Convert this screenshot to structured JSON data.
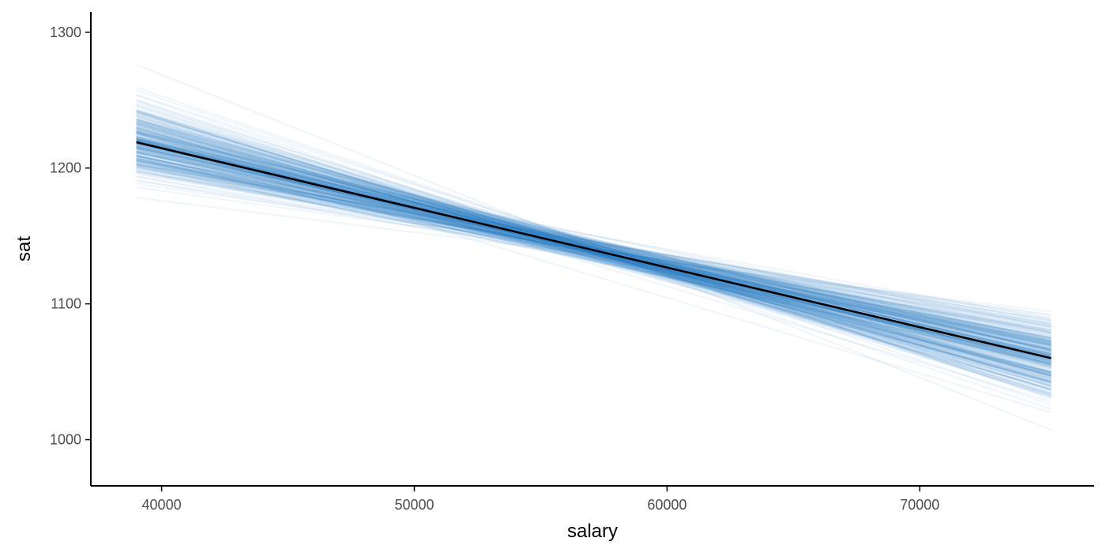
{
  "chart_data": {
    "type": "line",
    "title": "",
    "xlabel": "salary",
    "ylabel": "sat",
    "xlim": [
      37200,
      76900
    ],
    "ylim": [
      966,
      1315
    ],
    "x_ticks": [
      40000,
      50000,
      60000,
      70000
    ],
    "y_ticks": [
      1000,
      1100,
      1200,
      1300
    ],
    "x_tick_labels": [
      "40000",
      "50000",
      "60000",
      "70000"
    ],
    "y_tick_labels": [
      "1000",
      "1100",
      "1200",
      "1300"
    ],
    "grid": false,
    "legend": "none",
    "x_range_data": [
      39000,
      75200
    ],
    "series": [
      {
        "type": "fitted-line",
        "x": [
          39000,
          75200
        ],
        "y": [
          1219,
          1060
        ]
      }
    ],
    "uncertainty_draws": {
      "count": 300,
      "color": "#2f7fc1",
      "opacity": 0.07,
      "slope_per_10000": {
        "mean": -44,
        "sd": 7.5
      },
      "center_salary": 57100,
      "center_sat": 1139.5,
      "center_sd": 4.5
    },
    "colors": {
      "fitted_line": "#000000",
      "draws": "#2f7fc1",
      "axis": "#000000",
      "tick_text": "#4d4d4d"
    }
  }
}
